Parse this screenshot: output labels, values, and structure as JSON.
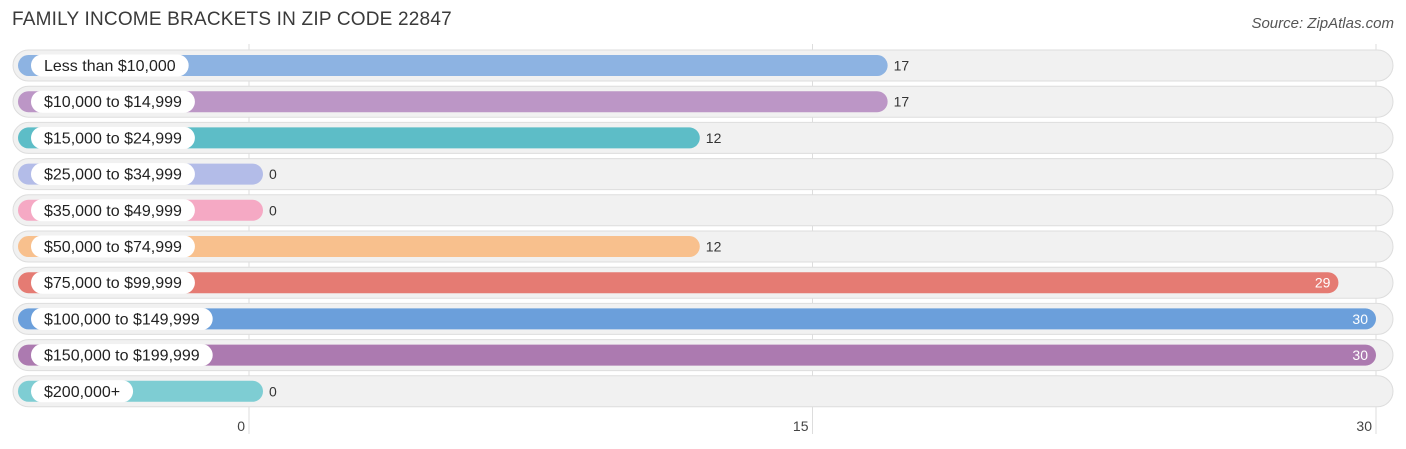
{
  "chart_data": {
    "type": "bar",
    "orientation": "horizontal",
    "title": "FAMILY INCOME BRACKETS IN ZIP CODE 22847",
    "source": "Source: ZipAtlas.com",
    "categories": [
      "Less than $10,000",
      "$10,000 to $14,999",
      "$15,000 to $24,999",
      "$25,000 to $34,999",
      "$35,000 to $49,999",
      "$50,000 to $74,999",
      "$75,000 to $99,999",
      "$100,000 to $149,999",
      "$150,000 to $199,999",
      "$200,000+"
    ],
    "values": [
      17,
      17,
      12,
      0,
      0,
      12,
      29,
      30,
      30,
      0
    ],
    "colors": [
      "#8db3e2",
      "#bc96c6",
      "#5dbdc7",
      "#b3bce8",
      "#f5a9c4",
      "#f8c08d",
      "#e57b73",
      "#6b9fdb",
      "#ac7ab0",
      "#7ecdd3"
    ],
    "xlim": [
      0,
      30
    ],
    "xticks": [
      0,
      15,
      30
    ],
    "xtick_labels": [
      "0",
      "15",
      "30"
    ],
    "grid": true
  }
}
